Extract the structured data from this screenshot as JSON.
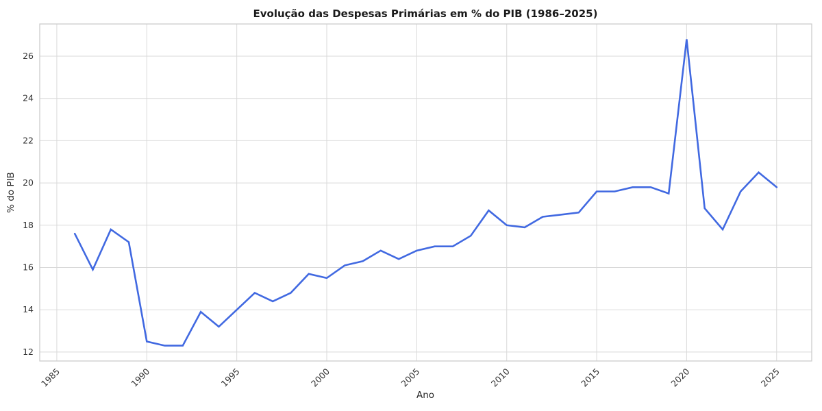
{
  "chart_data": {
    "type": "line",
    "title": "Evolução das Despesas Primárias em % do PIB (1986–2025)",
    "xlabel": "Ano",
    "ylabel": "% do PIB",
    "x": [
      1986,
      1987,
      1988,
      1989,
      1990,
      1991,
      1992,
      1993,
      1994,
      1995,
      1996,
      1997,
      1998,
      1999,
      2000,
      2001,
      2002,
      2003,
      2004,
      2005,
      2006,
      2007,
      2008,
      2009,
      2010,
      2011,
      2012,
      2013,
      2014,
      2015,
      2016,
      2017,
      2018,
      2019,
      2020,
      2021,
      2022,
      2023,
      2024,
      2025
    ],
    "values": [
      17.6,
      15.9,
      17.8,
      17.2,
      12.5,
      12.3,
      12.3,
      13.9,
      13.2,
      14.0,
      14.8,
      14.4,
      14.8,
      15.7,
      15.5,
      16.1,
      16.3,
      16.8,
      16.4,
      16.8,
      17.0,
      17.0,
      17.5,
      18.7,
      18.0,
      17.9,
      18.4,
      18.5,
      18.6,
      19.6,
      19.6,
      19.8,
      19.8,
      19.5,
      26.8,
      18.8,
      17.8,
      19.6,
      20.5,
      19.8
    ],
    "xticks": [
      1985,
      1990,
      1995,
      2000,
      2005,
      2010,
      2015,
      2020,
      2025
    ],
    "yticks": [
      12,
      14,
      16,
      18,
      20,
      22,
      24,
      26
    ],
    "xlim": [
      1984.05,
      2026.95
    ],
    "ylim": [
      11.575,
      27.525
    ],
    "xtick_rotation": 45,
    "grid": true,
    "legend": "none",
    "line_color": "#4169E1",
    "background_color": "#ffffff"
  }
}
